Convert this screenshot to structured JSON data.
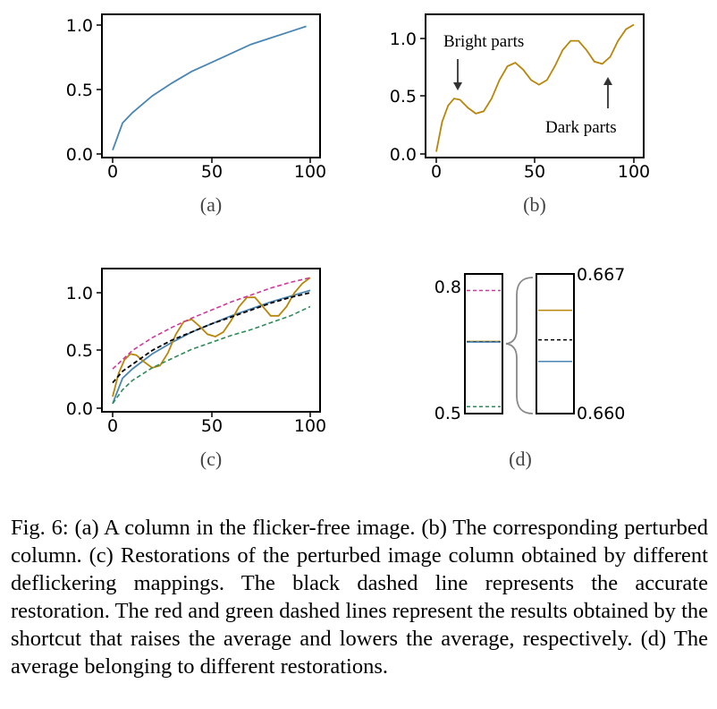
{
  "panels": {
    "a": {
      "label": "(a)"
    },
    "b": {
      "label": "(b)",
      "annot_bright": "Bright parts",
      "annot_dark": "Dark parts"
    },
    "c": {
      "label": "(c)"
    },
    "d": {
      "label": "(d)",
      "left_top": "0.8",
      "left_bottom": "0.5",
      "right_top": "0.667",
      "right_bottom": "0.660"
    }
  },
  "colors": {
    "blue": "#4a86b4",
    "gold": "#b8860b",
    "magenta": "#d0389b",
    "green": "#2e8b57",
    "black": "#000000"
  },
  "chart_data": [
    {
      "panel": "a",
      "type": "line",
      "xlim": [
        0,
        100
      ],
      "ylim": [
        0,
        1.0
      ],
      "xticks": [
        "0",
        "50",
        "100"
      ],
      "yticks": [
        "0.0",
        "0.5",
        "1.0"
      ],
      "series": [
        {
          "x": [
            0,
            5,
            10,
            20,
            30,
            40,
            50,
            60,
            70,
            80,
            90,
            98
          ],
          "y": [
            0.03,
            0.24,
            0.32,
            0.45,
            0.55,
            0.64,
            0.71,
            0.78,
            0.85,
            0.9,
            0.95,
            0.99
          ]
        }
      ]
    },
    {
      "panel": "b",
      "type": "line",
      "xlim": [
        0,
        100
      ],
      "ylim": [
        0,
        1.1
      ],
      "xticks": [
        "0",
        "50",
        "100"
      ],
      "yticks": [
        "0.0",
        "0.5",
        "1.0"
      ],
      "series": [
        {
          "x": [
            0,
            3,
            6,
            9,
            12,
            16,
            20,
            24,
            28,
            32,
            36,
            40,
            44,
            48,
            52,
            56,
            60,
            64,
            68,
            72,
            76,
            80,
            84,
            88,
            92,
            96,
            100
          ],
          "y": [
            0.02,
            0.28,
            0.42,
            0.48,
            0.47,
            0.4,
            0.35,
            0.37,
            0.48,
            0.64,
            0.76,
            0.79,
            0.73,
            0.64,
            0.6,
            0.64,
            0.76,
            0.9,
            0.98,
            0.98,
            0.9,
            0.8,
            0.78,
            0.84,
            0.98,
            1.08,
            1.12
          ]
        }
      ]
    },
    {
      "panel": "c",
      "type": "line",
      "xlim": [
        0,
        100
      ],
      "ylim": [
        0,
        1.1
      ],
      "xticks": [
        "0",
        "50",
        "100"
      ],
      "yticks": [
        "0.0",
        "0.5",
        "1.0"
      ],
      "series": [
        {
          "color_key": "blue",
          "style": "solid",
          "x": [
            0,
            5,
            10,
            20,
            30,
            40,
            50,
            60,
            70,
            80,
            90,
            100
          ],
          "y": [
            0.04,
            0.26,
            0.34,
            0.47,
            0.57,
            0.66,
            0.73,
            0.8,
            0.86,
            0.92,
            0.97,
            1.02
          ]
        },
        {
          "color_key": "gold",
          "style": "solid",
          "x": [
            0,
            3,
            6,
            9,
            12,
            16,
            20,
            24,
            28,
            32,
            36,
            40,
            44,
            48,
            52,
            56,
            60,
            64,
            68,
            72,
            76,
            80,
            84,
            88,
            92,
            96,
            100
          ],
          "y": [
            0.1,
            0.3,
            0.42,
            0.47,
            0.46,
            0.4,
            0.35,
            0.37,
            0.48,
            0.64,
            0.75,
            0.77,
            0.71,
            0.64,
            0.62,
            0.66,
            0.76,
            0.88,
            0.96,
            0.96,
            0.88,
            0.8,
            0.8,
            0.88,
            1.0,
            1.08,
            1.13
          ]
        },
        {
          "color_key": "black",
          "style": "dashed",
          "x": [
            0,
            5,
            10,
            20,
            30,
            40,
            50,
            60,
            70,
            80,
            90,
            100
          ],
          "y": [
            0.22,
            0.32,
            0.38,
            0.5,
            0.59,
            0.66,
            0.73,
            0.79,
            0.85,
            0.91,
            0.96,
            1.0
          ]
        },
        {
          "color_key": "magenta",
          "style": "dashed",
          "x": [
            0,
            5,
            10,
            20,
            30,
            40,
            50,
            60,
            70,
            80,
            90,
            100
          ],
          "y": [
            0.34,
            0.42,
            0.5,
            0.61,
            0.7,
            0.78,
            0.85,
            0.92,
            0.98,
            1.04,
            1.09,
            1.13
          ]
        },
        {
          "color_key": "green",
          "style": "dashed",
          "x": [
            0,
            5,
            10,
            20,
            30,
            40,
            50,
            60,
            70,
            80,
            90,
            100
          ],
          "y": [
            0.04,
            0.16,
            0.24,
            0.35,
            0.43,
            0.51,
            0.57,
            0.63,
            0.68,
            0.74,
            0.8,
            0.88
          ]
        }
      ]
    },
    {
      "panel": "d",
      "type": "line",
      "left_range": [
        0.5,
        0.8
      ],
      "right_range": [
        0.66,
        0.667
      ],
      "left_levels": [
        {
          "color_key": "magenta",
          "style": "dashed",
          "value": 0.786
        },
        {
          "color_key": "gold",
          "style": "solid",
          "value": 0.6641
        },
        {
          "color_key": "black",
          "style": "dashed",
          "value": 0.6634
        },
        {
          "color_key": "blue",
          "style": "solid",
          "value": 0.6627
        },
        {
          "color_key": "green",
          "style": "dashed",
          "value": 0.508
        }
      ],
      "right_levels": [
        {
          "color_key": "gold",
          "style": "solid",
          "value": 0.6652
        },
        {
          "color_key": "black",
          "style": "dashed",
          "value": 0.6637
        },
        {
          "color_key": "blue",
          "style": "solid",
          "value": 0.6626
        }
      ]
    }
  ],
  "caption": "Fig. 6: (a) A column in the flicker-free image. (b) The corresponding perturbed column. (c) Restorations of the perturbed image column obtained by different deflickering mappings. The black dashed line represents the accurate restoration. The red and green dashed lines represent the results obtained by the shortcut that raises the average and lowers the average, respectively. (d) The average belonging to different restorations."
}
